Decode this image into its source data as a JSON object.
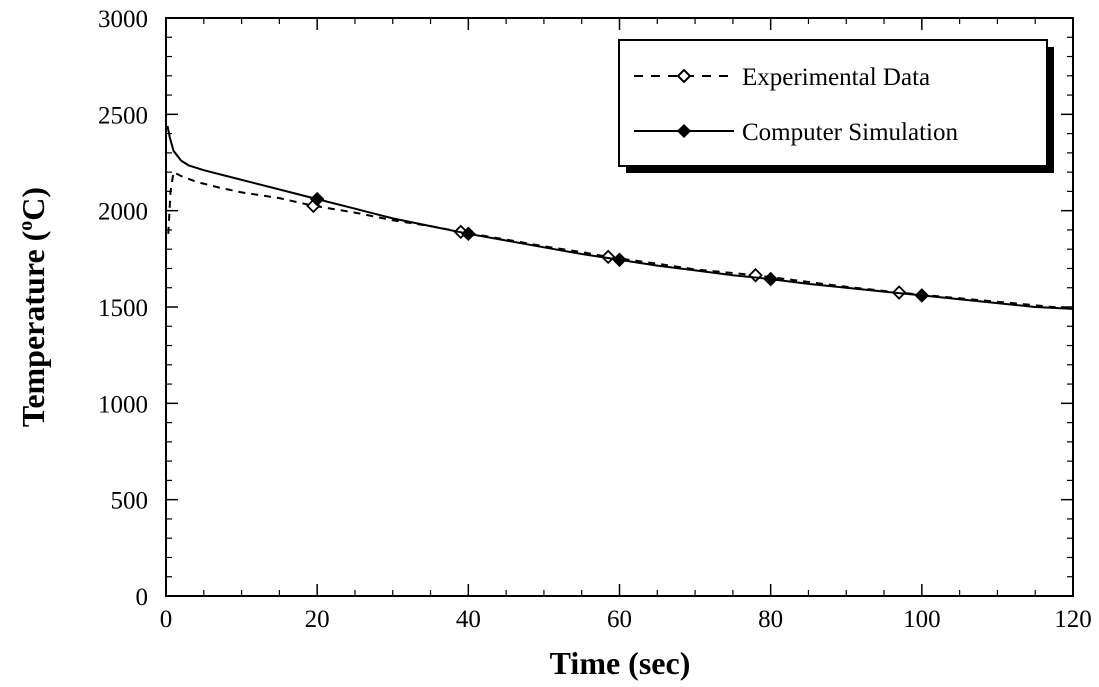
{
  "chart_data": {
    "type": "line",
    "xlabel": "Time  (sec)",
    "ylabel": "Temperature  (°C)",
    "ylabel_prefix": "Temperature  (",
    "ylabel_sup": "o",
    "ylabel_suffix": "C)",
    "xlim": [
      0,
      120
    ],
    "ylim": [
      0,
      3000
    ],
    "xticks": [
      0,
      20,
      40,
      60,
      80,
      100,
      120
    ],
    "yticks": [
      0,
      500,
      1000,
      1500,
      2000,
      2500,
      3000
    ],
    "grid": false,
    "legend_position": "top-right",
    "series": [
      {
        "name": "Experimental Data",
        "style": "dashed",
        "marker": "open-diamond",
        "x": [
          0.3,
          0.6,
          1,
          2,
          4,
          7,
          10,
          15,
          19.5,
          25,
          30,
          35,
          39,
          45,
          50,
          55,
          58.5,
          65,
          70,
          78,
          85,
          90,
          97,
          105,
          112,
          120
        ],
        "y": [
          1880,
          2100,
          2200,
          2180,
          2150,
          2120,
          2095,
          2065,
          2025,
          1990,
          1950,
          1920,
          1890,
          1850,
          1815,
          1785,
          1760,
          1725,
          1695,
          1665,
          1630,
          1605,
          1575,
          1545,
          1520,
          1490
        ],
        "markers_x": [
          19.5,
          39,
          58.5,
          78,
          97
        ],
        "markers_y": [
          2025,
          1890,
          1760,
          1665,
          1575
        ]
      },
      {
        "name": "Computer Simulation",
        "style": "solid",
        "marker": "filled-diamond",
        "x": [
          0.2,
          0.5,
          1,
          2,
          3,
          5,
          8,
          12,
          16,
          20,
          25,
          30,
          35,
          40,
          45,
          50,
          55,
          60,
          65,
          70,
          75,
          80,
          85,
          90,
          95,
          100,
          105,
          110,
          115,
          120
        ],
        "y": [
          2440,
          2380,
          2310,
          2260,
          2235,
          2210,
          2180,
          2140,
          2100,
          2060,
          2010,
          1960,
          1920,
          1880,
          1845,
          1810,
          1775,
          1745,
          1715,
          1690,
          1665,
          1645,
          1620,
          1600,
          1580,
          1560,
          1540,
          1520,
          1500,
          1490
        ],
        "markers_x": [
          20,
          40,
          60,
          80,
          100
        ],
        "markers_y": [
          2060,
          1880,
          1745,
          1645,
          1560
        ]
      }
    ]
  }
}
